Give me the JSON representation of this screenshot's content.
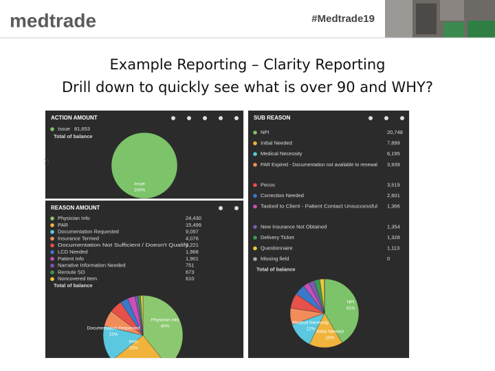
{
  "header": {
    "logo": "medtrade",
    "hashtag": "#Medtrade19"
  },
  "title": {
    "line1": "Example Reporting – Clarity Reporting",
    "line2": "Drill down to quickly see what is over 90 and WHY?"
  },
  "panels": [
    {
      "title": "ACTION AMOUNT",
      "edge_text": "7)",
      "items": [
        {
          "name": "Issue",
          "value": "81,653",
          "color": "#7cc36a"
        }
      ],
      "total": "Total of balance",
      "pie_labels": [
        {
          "name": "Issue",
          "percent": "100%"
        }
      ]
    },
    {
      "title": "REASON AMOUNT",
      "items": [
        {
          "name": "Physician Info",
          "value": "24,430",
          "color": "#8cc870"
        },
        {
          "name": "PAR",
          "value": "15,499",
          "color": "#f0b43c"
        },
        {
          "name": "Documentation Requested",
          "value": "9,097",
          "color": "#5bc8e0"
        },
        {
          "name": "Insurance Termed",
          "value": "4,076",
          "color": "#f28c5a"
        },
        {
          "name": "Documentation Not Sufficient / Doesn't Qualify",
          "value": "3,221",
          "color": "#e8504a"
        },
        {
          "name": "LCD Needed",
          "value": "1,966",
          "color": "#3a78c8"
        },
        {
          "name": "Patient Info",
          "value": "1,901",
          "color": "#c850b8"
        },
        {
          "name": "Narrative Information Needed",
          "value": "751",
          "color": "#7a5ab0"
        },
        {
          "name": "Reroute SO",
          "value": "673",
          "color": "#3c9a50"
        },
        {
          "name": "Noncovered Item",
          "value": "610",
          "color": "#e8c83c"
        }
      ],
      "total": "Total of balance",
      "pie_labels": [
        {
          "name": "Physician Info",
          "percent": "40%"
        },
        {
          "name": "Documentation Requested",
          "percent": "15%"
        },
        {
          "name": "PAR",
          "percent": "25%"
        }
      ]
    },
    {
      "title": "SUB REASON",
      "items": [
        {
          "name": "NPI",
          "value": "20,748",
          "color": "#7cc36a"
        },
        {
          "name": "Initial Needed",
          "value": "7,899",
          "color": "#f0b43c"
        },
        {
          "name": "Medical Necessity",
          "value": "6,195",
          "color": "#5bc8e0"
        },
        {
          "name": "PAR Expired - Documentation not available to renewal",
          "value": "3,939",
          "color": "#f28c5a"
        },
        {
          "name": "Pecos",
          "value": "3,519",
          "color": "#e8504a"
        },
        {
          "name": "Correction Needed",
          "value": "2,601",
          "color": "#3a78c8"
        },
        {
          "name": "Tasked to Client - Patient Contact Unsuccessful",
          "value": "1,366",
          "color": "#c850b8"
        },
        {
          "name": "New Insurance Not Obtained",
          "value": "1,354",
          "color": "#7a5ab0"
        },
        {
          "name": "Delivery Ticket",
          "value": "1,328",
          "color": "#3c9a50"
        },
        {
          "name": "Questionnaire",
          "value": "1,113",
          "color": "#e8c83c"
        },
        {
          "name": "Missing field",
          "value": "0",
          "color": "#aaaaaa"
        }
      ],
      "total": "Total of balance",
      "pie_labels": [
        {
          "name": "NPI",
          "percent": "41%"
        },
        {
          "name": "Medical Necessity",
          "percent": "12%"
        },
        {
          "name": "Initial Needed",
          "percent": "16%"
        }
      ]
    }
  ]
}
